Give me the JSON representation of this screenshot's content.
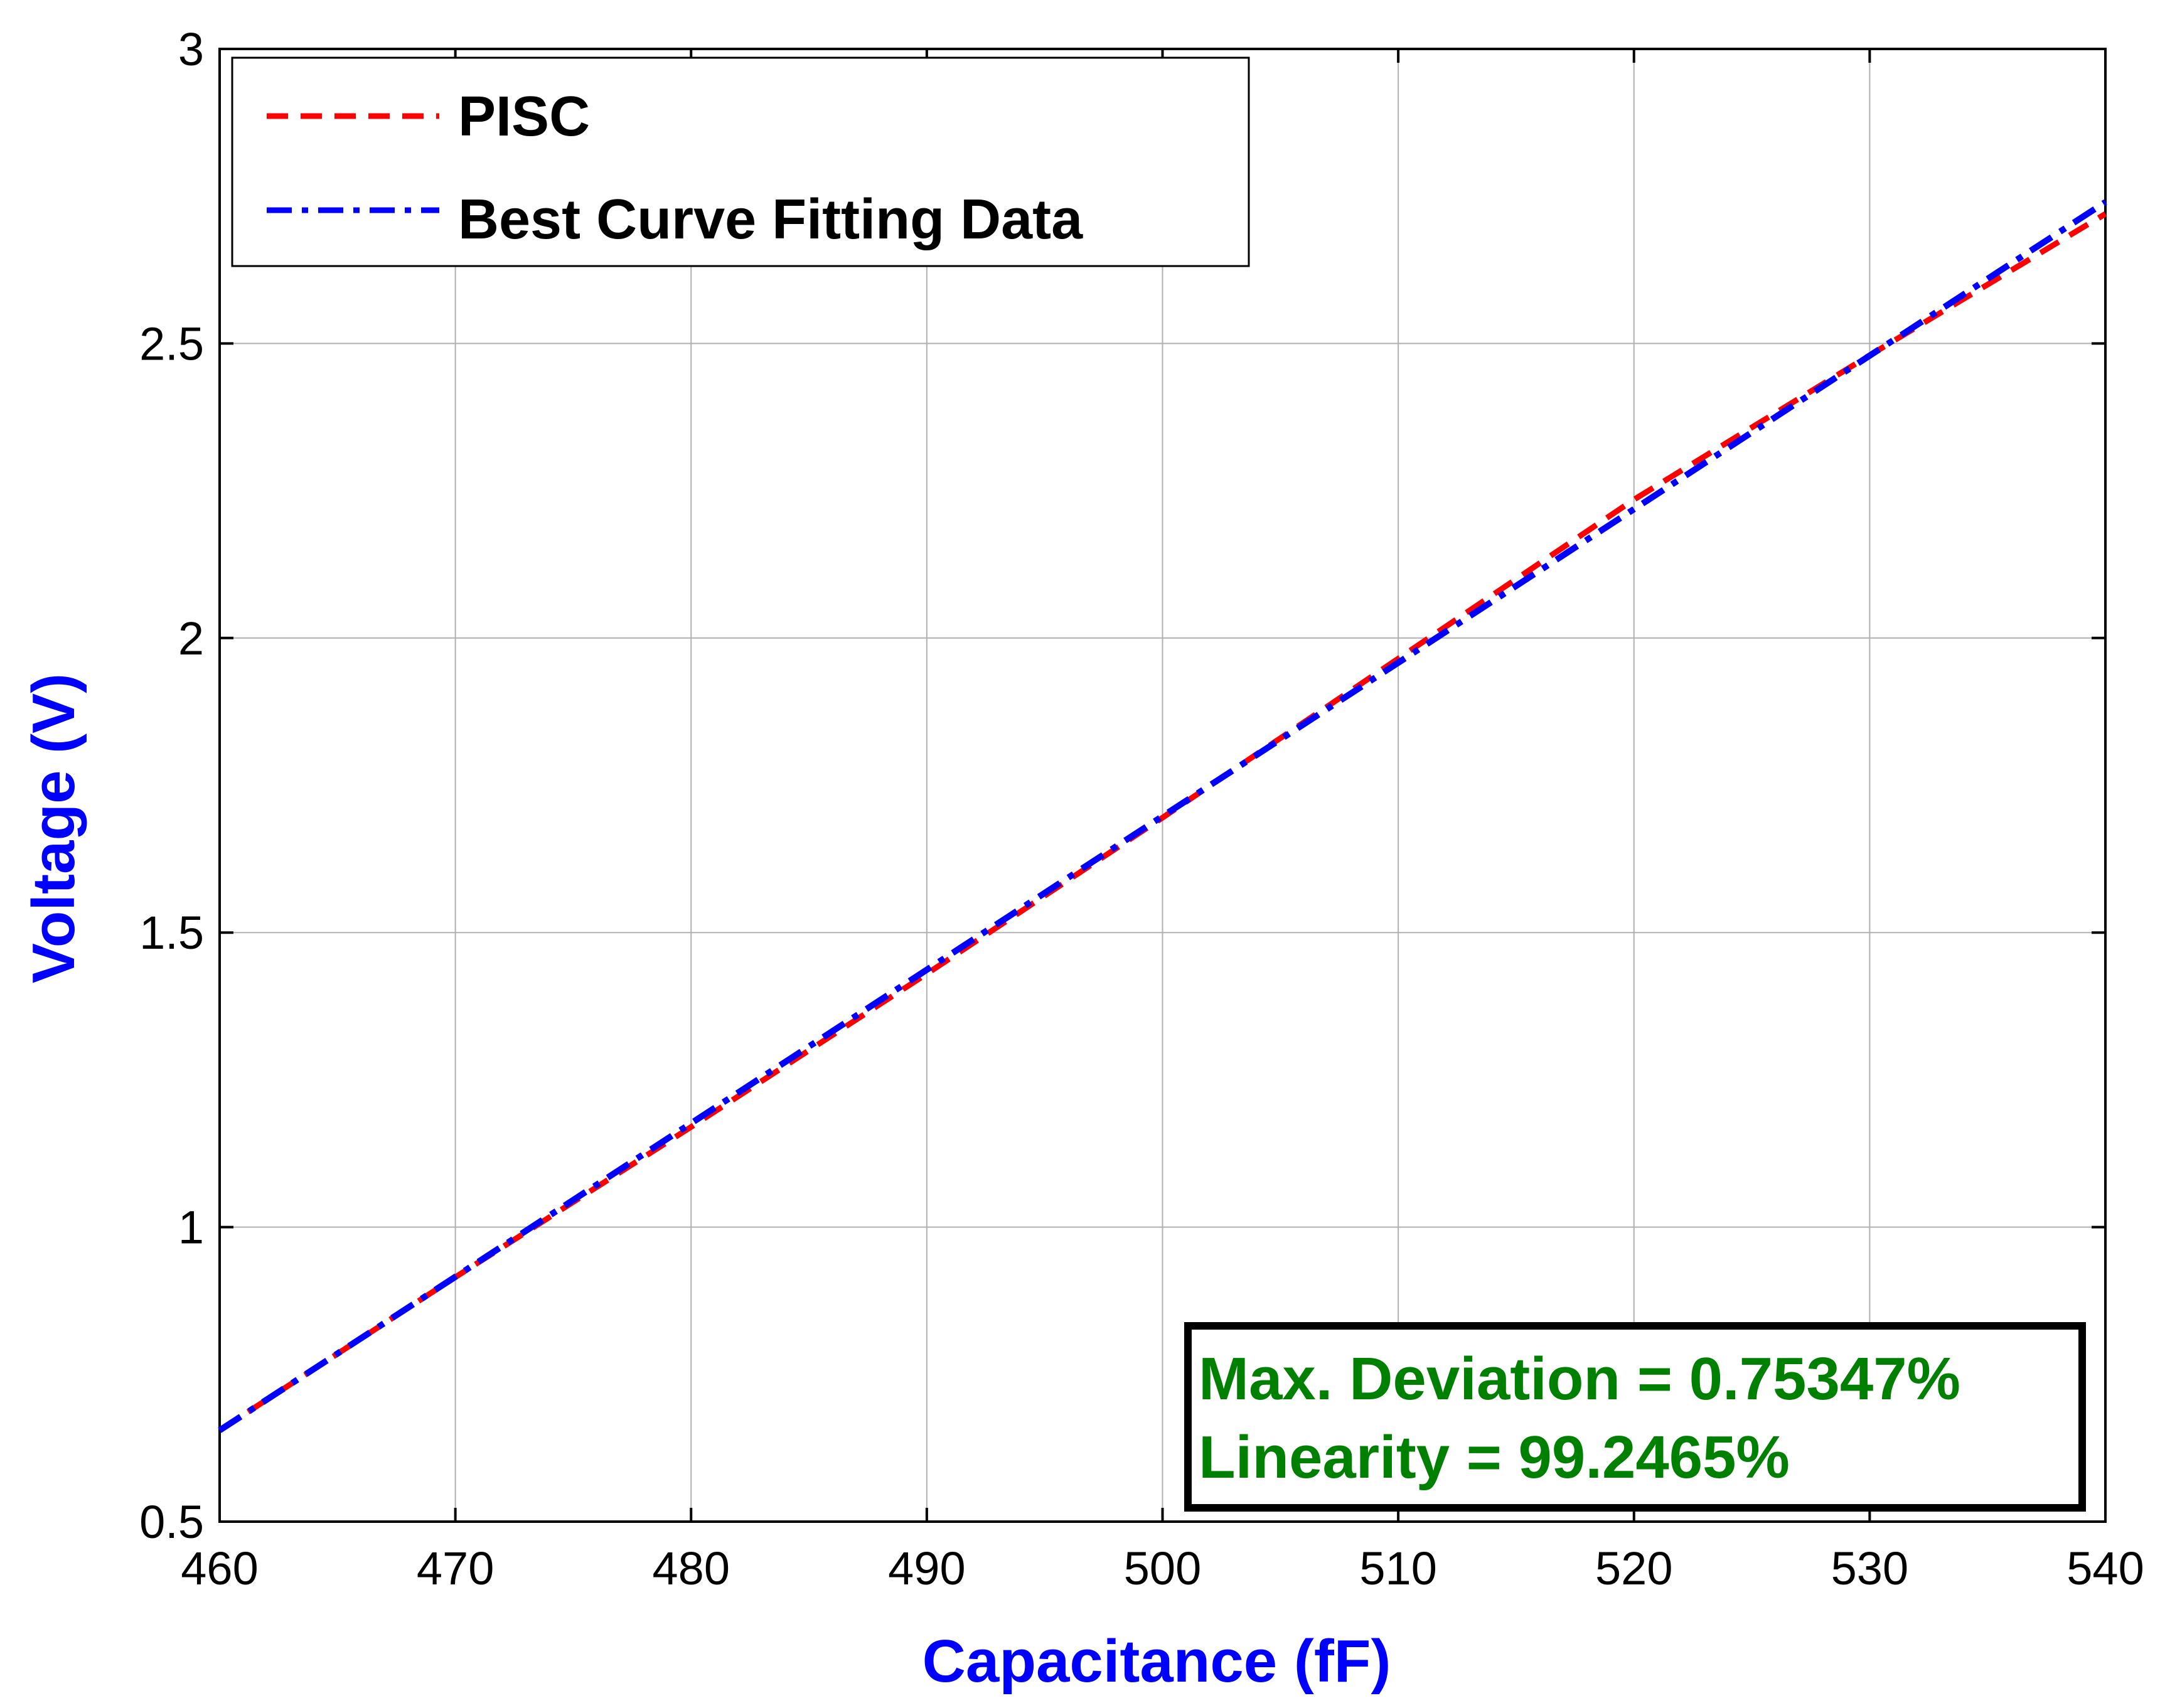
{
  "chart_data": {
    "type": "line",
    "title": "",
    "xlabel": "Capacitance (fF)",
    "ylabel": "Voltage (V)",
    "xlim": [
      460,
      540
    ],
    "ylim": [
      0.5,
      3
    ],
    "xticks": [
      460,
      470,
      480,
      490,
      500,
      510,
      520,
      530,
      540
    ],
    "yticks": [
      0.5,
      1,
      1.5,
      2,
      2.5,
      3
    ],
    "xtick_labels": [
      "460",
      "470",
      "480",
      "490",
      "500",
      "510",
      "520",
      "530",
      "540"
    ],
    "ytick_labels": [
      "0.5",
      "1",
      "1.5",
      "2",
      "2.5",
      "3"
    ],
    "grid": true,
    "legend_position": "top-left",
    "series": [
      {
        "name": "PISC",
        "color": "#ff0000",
        "style": "dashed",
        "x": [
          460,
          470,
          480,
          490,
          500,
          510,
          520,
          530,
          540
        ],
        "y": [
          0.655,
          0.915,
          1.17,
          1.43,
          1.695,
          1.965,
          2.235,
          2.48,
          2.72
        ]
      },
      {
        "name": "Best Curve Fitting Data",
        "color": "#0000ff",
        "style": "dashdot",
        "x": [
          460,
          540
        ],
        "y": [
          0.655,
          2.74
        ]
      }
    ],
    "annotations": [
      {
        "text": "Max. Deviation = 0.75347%",
        "color": "#008000"
      },
      {
        "text": "Linearity = 99.2465%",
        "color": "#008000"
      }
    ]
  },
  "colors": {
    "axis_label": "#0000ff",
    "annotation_text": "#008000",
    "grid": "#b0b0b0"
  }
}
